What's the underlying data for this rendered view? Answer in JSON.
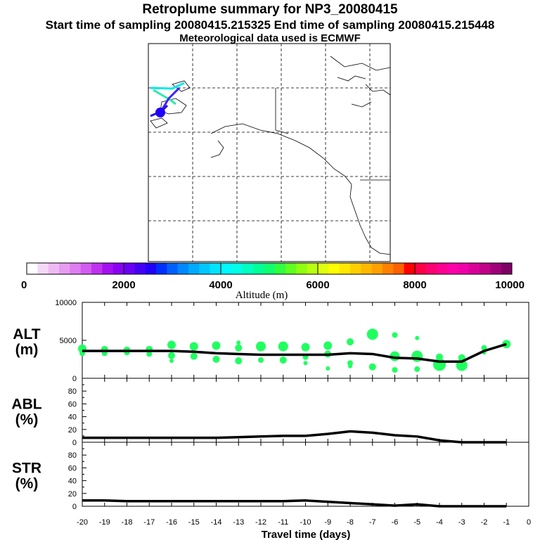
{
  "header": {
    "title": "Retroplume summary for NP3_20080415",
    "sampling": "Start time of sampling 20080415.215325     End time of sampling 20080415.215448",
    "met": "Meteorological data used is ECMWF"
  },
  "colorbar": {
    "label": "Altitude (m)",
    "ticks": [
      "0",
      "2000",
      "4000",
      "6000",
      "8000",
      "10000"
    ],
    "colors": [
      "#ffffff",
      "#f4d8f8",
      "#eebaf2",
      "#e69cf0",
      "#de7ef0",
      "#d25cf0",
      "#c032f0",
      "#a510f0",
      "#8a00f4",
      "#6a00f4",
      "#4400f4",
      "#2000f8",
      "#0030ff",
      "#0060ff",
      "#0088ff",
      "#00aaff",
      "#00c8ff",
      "#00e4ff",
      "#00f8ff",
      "#00ffe8",
      "#00ffc0",
      "#00ff98",
      "#10ff70",
      "#30ff40",
      "#60ff20",
      "#90ff10",
      "#b8ff10",
      "#e0ff10",
      "#ffff00",
      "#ffe800",
      "#ffd000",
      "#ffb800",
      "#ffa000",
      "#ff8000",
      "#ff6000",
      "#ff0000",
      "#ff0044",
      "#ff0070",
      "#ff0090",
      "#ff00a8",
      "#f000a8",
      "#d80098",
      "#c00088",
      "#a00078",
      "#800068"
    ]
  },
  "chart_data": [
    {
      "type": "line",
      "title": "ALT",
      "ylabel": "ALT (m)",
      "ylabel_top": "ALT",
      "ylabel_unit": "(m)",
      "ylim": [
        0,
        10000
      ],
      "yticks": [
        "10000",
        "5000",
        "0"
      ],
      "ytick_values": [
        10000,
        5000,
        0
      ],
      "x": [
        -20,
        -19,
        -18,
        -17,
        -16,
        -15,
        -14,
        -13,
        -12,
        -11,
        -10,
        -9,
        -8,
        -7,
        -6,
        -5,
        -4,
        -3,
        -2,
        -1
      ],
      "values": [
        3600,
        3600,
        3600,
        3600,
        3600,
        3500,
        3300,
        3200,
        3100,
        3100,
        3100,
        3100,
        3300,
        3200,
        2700,
        2600,
        2200,
        2200,
        3600,
        4500
      ],
      "scatter_color": "#20ff60",
      "scatter": [
        {
          "x": -20,
          "y": 3900,
          "r": 6
        },
        {
          "x": -20,
          "y": 3300,
          "r": 4
        },
        {
          "x": -19,
          "y": 3800,
          "r": 5
        },
        {
          "x": -19,
          "y": 3300,
          "r": 4
        },
        {
          "x": -18,
          "y": 3700,
          "r": 5
        },
        {
          "x": -18,
          "y": 3400,
          "r": 4
        },
        {
          "x": -17,
          "y": 3800,
          "r": 5
        },
        {
          "x": -17,
          "y": 3200,
          "r": 4
        },
        {
          "x": -16,
          "y": 4400,
          "r": 6
        },
        {
          "x": -16,
          "y": 3000,
          "r": 5
        },
        {
          "x": -16,
          "y": 2300,
          "r": 3
        },
        {
          "x": -15,
          "y": 4200,
          "r": 6
        },
        {
          "x": -15,
          "y": 2900,
          "r": 5
        },
        {
          "x": -14,
          "y": 4300,
          "r": 6
        },
        {
          "x": -14,
          "y": 2500,
          "r": 5
        },
        {
          "x": -13,
          "y": 4700,
          "r": 3
        },
        {
          "x": -13,
          "y": 4000,
          "r": 5
        },
        {
          "x": -13,
          "y": 2300,
          "r": 5
        },
        {
          "x": -12,
          "y": 4200,
          "r": 7
        },
        {
          "x": -12,
          "y": 2400,
          "r": 4
        },
        {
          "x": -11,
          "y": 4200,
          "r": 7
        },
        {
          "x": -11,
          "y": 2400,
          "r": 5
        },
        {
          "x": -10,
          "y": 4100,
          "r": 6
        },
        {
          "x": -10,
          "y": 2800,
          "r": 4
        },
        {
          "x": -10,
          "y": 2000,
          "r": 3
        },
        {
          "x": -9,
          "y": 4300,
          "r": 6
        },
        {
          "x": -9,
          "y": 3200,
          "r": 5
        },
        {
          "x": -9,
          "y": 1300,
          "r": 3
        },
        {
          "x": -8,
          "y": 4800,
          "r": 5
        },
        {
          "x": -8,
          "y": 2000,
          "r": 4
        },
        {
          "x": -8,
          "y": 1600,
          "r": 3
        },
        {
          "x": -7,
          "y": 5800,
          "r": 8
        },
        {
          "x": -7,
          "y": 1500,
          "r": 5
        },
        {
          "x": -6,
          "y": 5700,
          "r": 4
        },
        {
          "x": -6,
          "y": 2900,
          "r": 7
        },
        {
          "x": -6,
          "y": 1100,
          "r": 4
        },
        {
          "x": -5,
          "y": 5300,
          "r": 3
        },
        {
          "x": -5,
          "y": 2900,
          "r": 8
        },
        {
          "x": -5,
          "y": 1200,
          "r": 4
        },
        {
          "x": -4,
          "y": 2800,
          "r": 5
        },
        {
          "x": -4,
          "y": 1800,
          "r": 9
        },
        {
          "x": -3,
          "y": 2700,
          "r": 5
        },
        {
          "x": -3,
          "y": 1700,
          "r": 8
        },
        {
          "x": -2,
          "y": 4000,
          "r": 4
        },
        {
          "x": -2,
          "y": 3400,
          "r": 3
        },
        {
          "x": -1,
          "y": 4500,
          "r": 6
        }
      ]
    },
    {
      "type": "line",
      "title": "ABL",
      "ylabel": "ABL (%)",
      "ylabel_top": "ABL",
      "ylabel_unit": "(%)",
      "ylim": [
        0,
        100
      ],
      "yticks": [
        "80",
        "60",
        "40",
        "20",
        "0"
      ],
      "ytick_values": [
        80,
        60,
        40,
        20,
        0
      ],
      "x": [
        -20,
        -19,
        -18,
        -17,
        -16,
        -15,
        -14,
        -13,
        -12,
        -11,
        -10,
        -9,
        -8,
        -7,
        -6,
        -5,
        -4,
        -3,
        -2,
        -1
      ],
      "values": [
        7,
        7,
        7,
        7,
        7,
        7,
        7,
        8,
        9,
        10,
        10,
        13,
        17,
        15,
        11,
        9,
        3,
        0,
        0,
        0
      ]
    },
    {
      "type": "line",
      "title": "STR",
      "ylabel": "STR (%)",
      "ylabel_top": "STR",
      "ylabel_unit": "(%)",
      "ylim": [
        0,
        100
      ],
      "yticks": [
        "80",
        "60",
        "40",
        "20",
        "0"
      ],
      "ytick_values": [
        80,
        60,
        40,
        20,
        0
      ],
      "xlabel": "Travel time (days)",
      "xlim": [
        -20,
        0
      ],
      "xticks": [
        "-20",
        "-19",
        "-18",
        "-17",
        "-16",
        "-15",
        "-14",
        "-13",
        "-12",
        "-11",
        "-10",
        "-9",
        "-8",
        "-7",
        "-6",
        "-5",
        "-4",
        "-3",
        "-2",
        "-1",
        "0"
      ],
      "x": [
        -20,
        -19,
        -18,
        -17,
        -16,
        -15,
        -14,
        -13,
        -12,
        -11,
        -10,
        -9,
        -8,
        -7,
        -6,
        -5,
        -4,
        -3,
        -2,
        -1
      ],
      "values": [
        9,
        9,
        8,
        8,
        8,
        8,
        8,
        8,
        8,
        8,
        9,
        7,
        5,
        3,
        1,
        3,
        0,
        0,
        0,
        0
      ]
    }
  ]
}
